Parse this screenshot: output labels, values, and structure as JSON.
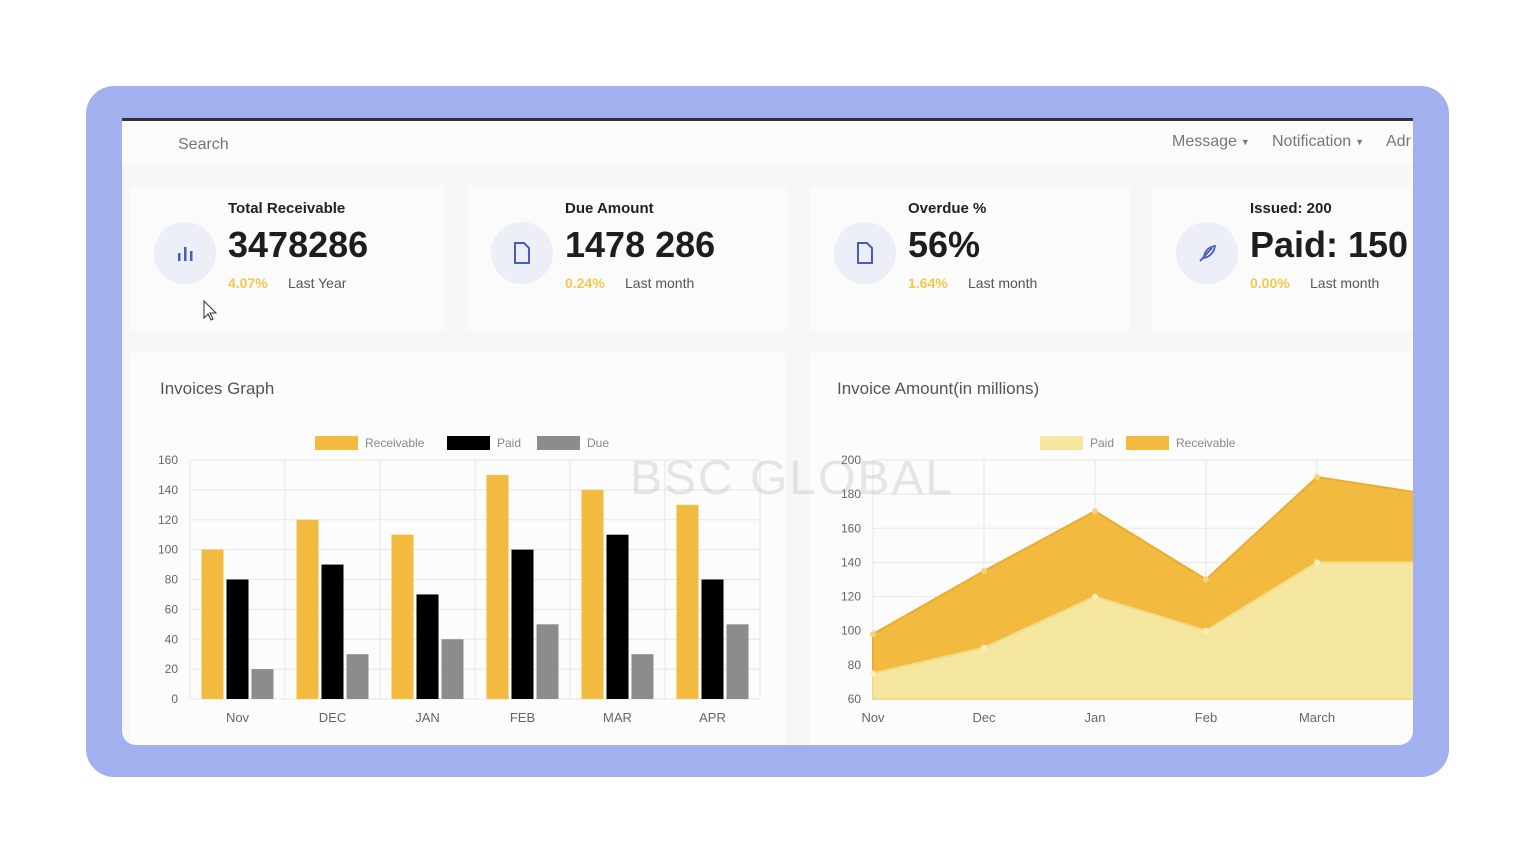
{
  "topbar": {
    "search_placeholder": "Search",
    "menu": [
      {
        "label": "Message"
      },
      {
        "label": "Notification"
      },
      {
        "label": "Adr"
      }
    ]
  },
  "cards": [
    {
      "title": "Total Receivable",
      "value": "3478286",
      "change": "4.07%",
      "period": "Last Year",
      "icon": "bar-chart-icon"
    },
    {
      "title": "Due Amount",
      "value": "1478 286",
      "change": "0.24%",
      "period": "Last month",
      "icon": "file-icon"
    },
    {
      "title": "Overdue %",
      "value": "56%",
      "change": "1.64%",
      "period": "Last month",
      "icon": "file-icon"
    },
    {
      "title": "Issued: 200",
      "value": "Paid: 150",
      "change": "0.00%",
      "period": "Last month",
      "icon": "feather-icon"
    }
  ],
  "watermark": "BSC GLOBAL",
  "colors": {
    "frame": "#a3b0ef",
    "receivable": "#f2bb3f",
    "paid_bar": "#000000",
    "due": "#8c8c8c",
    "paid_area": "#f5e6a0",
    "accent": "#4a5cc0",
    "change": "#f2c94c"
  },
  "chart_data": [
    {
      "type": "bar",
      "title": "Invoices Graph",
      "categories": [
        "Nov",
        "DEC",
        "JAN",
        "FEB",
        "MAR",
        "APR"
      ],
      "series": [
        {
          "name": "Receivable",
          "values": [
            100,
            120,
            110,
            150,
            140,
            130
          ]
        },
        {
          "name": "Paid",
          "values": [
            80,
            90,
            70,
            100,
            110,
            80
          ]
        },
        {
          "name": "Due",
          "values": [
            20,
            30,
            40,
            50,
            30,
            50
          ]
        }
      ],
      "ylim": [
        0,
        160
      ],
      "yticks": [
        0,
        20,
        40,
        60,
        80,
        100,
        120,
        140,
        160
      ],
      "grid": true,
      "legend": "top"
    },
    {
      "type": "area",
      "title": "Invoice Amount(in millions)",
      "categories": [
        "Nov",
        "Dec",
        "Jan",
        "Feb",
        "March",
        ""
      ],
      "series": [
        {
          "name": "Paid",
          "values": [
            75,
            90,
            120,
            100,
            140,
            140
          ]
        },
        {
          "name": "Receivable",
          "values": [
            98,
            135,
            170,
            130,
            190,
            180
          ]
        }
      ],
      "ylim": [
        60,
        200
      ],
      "yticks": [
        60,
        80,
        100,
        120,
        140,
        160,
        180,
        200
      ],
      "grid": true,
      "legend": "top"
    }
  ]
}
